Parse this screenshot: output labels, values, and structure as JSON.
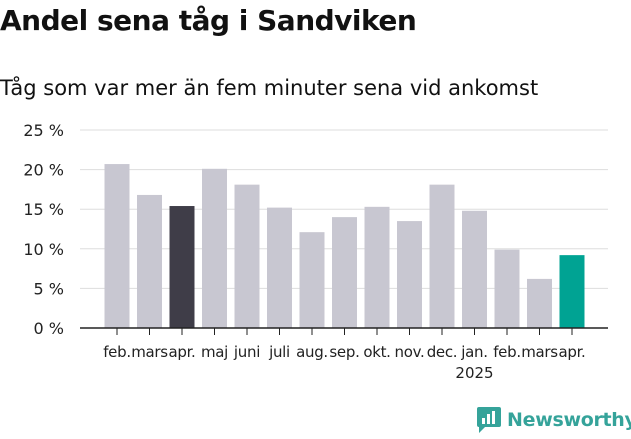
{
  "title": "Andel sena tåg i Sandviken",
  "subtitle": "Tåg som var mer än fem minuter sena vid ankomst",
  "logo": {
    "text": "Newsworthy",
    "icon": "newsworthy-logo-icon"
  },
  "colors": {
    "default_bar": "#c8c7d1",
    "highlight_bar": "#3f3d48",
    "latest_bar": "#00a393",
    "grid": "#dddddd",
    "axis": "#222222",
    "text": "#222222"
  },
  "chart_data": {
    "type": "bar",
    "categories": [
      "feb.",
      "mars",
      "apr.",
      "maj",
      "juni",
      "juli",
      "aug.",
      "sep.",
      "okt.",
      "nov.",
      "dec.",
      "jan.",
      "feb.",
      "mars",
      "apr."
    ],
    "year_labels": [
      {
        "index": 11,
        "label": "2025"
      }
    ],
    "values": [
      20.7,
      16.8,
      15.4,
      20.1,
      18.1,
      15.2,
      12.1,
      14.0,
      15.3,
      13.5,
      18.1,
      14.8,
      9.9,
      6.2,
      9.2
    ],
    "highlight": {
      "index": 2,
      "color": "#3f3d48"
    },
    "latest": {
      "index": 14,
      "color": "#00a393"
    },
    "yticks": [
      "0 %",
      "5 %",
      "10 %",
      "15 %",
      "20 %",
      "25 %"
    ],
    "ylim": [
      0,
      25
    ],
    "grid": true
  }
}
